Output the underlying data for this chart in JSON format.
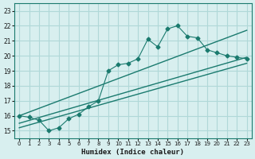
{
  "xlabel": "Humidex (Indice chaleur)",
  "ylabel": "",
  "bg_color": "#d8efef",
  "grid_color": "#b0d8d8",
  "line_color": "#1a7a6e",
  "xlim": [
    -0.5,
    23.5
  ],
  "ylim": [
    14.5,
    23.5
  ],
  "xticks": [
    0,
    1,
    2,
    3,
    4,
    5,
    6,
    7,
    8,
    9,
    10,
    11,
    12,
    13,
    14,
    15,
    16,
    17,
    18,
    19,
    20,
    21,
    22,
    23
  ],
  "yticks": [
    15,
    16,
    17,
    18,
    19,
    20,
    21,
    22,
    23
  ],
  "scatter_x": [
    0,
    1,
    2,
    3,
    4,
    5,
    6,
    7,
    8,
    9,
    10,
    11,
    12,
    13,
    14,
    15,
    16,
    17,
    18,
    19,
    20,
    21,
    22,
    23
  ],
  "scatter_y": [
    16.0,
    15.9,
    15.7,
    15.0,
    15.2,
    15.8,
    16.1,
    16.6,
    17.0,
    19.0,
    19.4,
    19.5,
    19.8,
    21.1,
    20.6,
    21.8,
    22.0,
    21.3,
    21.2,
    20.4,
    20.2,
    20.0,
    19.9,
    19.8
  ],
  "reg_line1": [
    [
      0,
      23
    ],
    [
      16.0,
      21.7
    ]
  ],
  "reg_line2": [
    [
      0,
      23
    ],
    [
      15.5,
      19.9
    ]
  ],
  "reg_line3": [
    [
      0,
      23
    ],
    [
      15.2,
      19.5
    ]
  ]
}
